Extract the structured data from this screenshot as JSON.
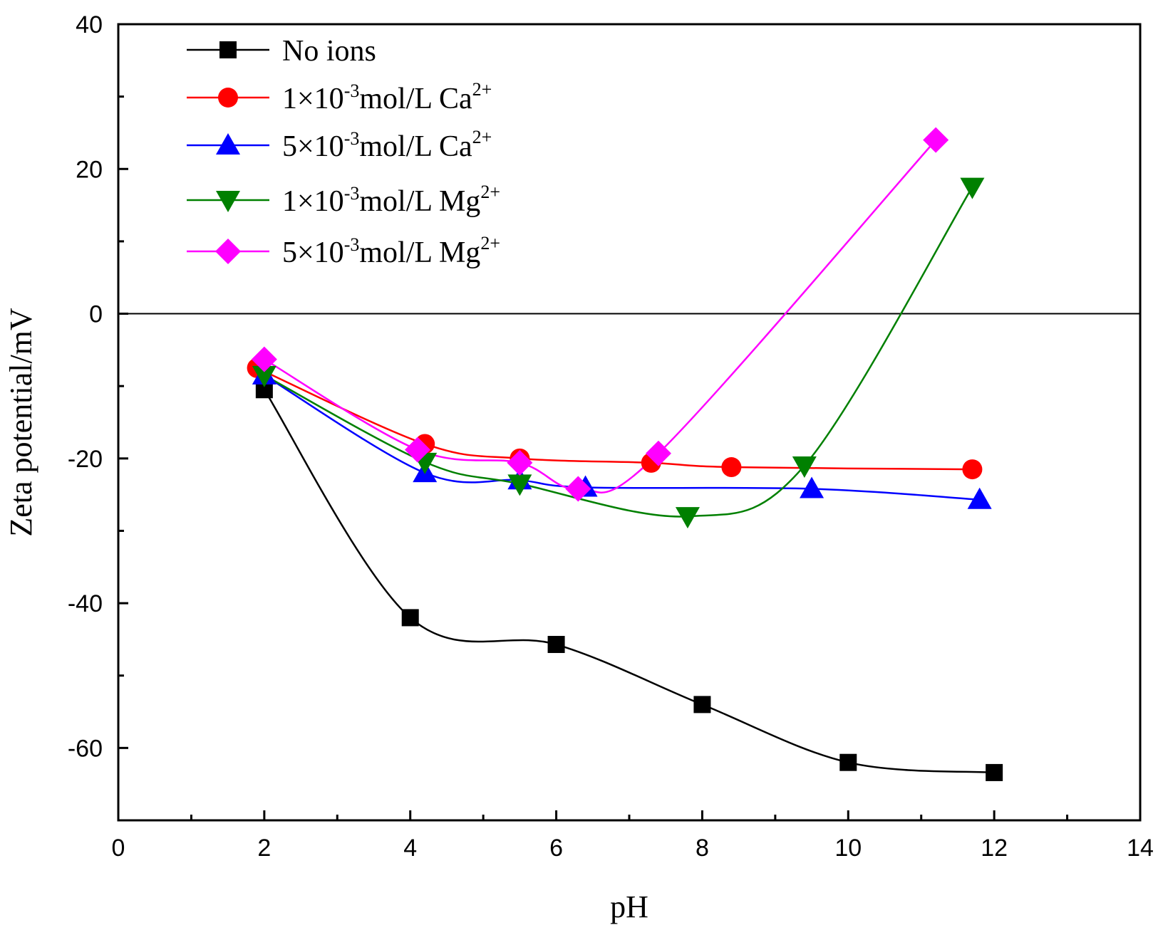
{
  "chart_data": {
    "type": "line",
    "title": "",
    "xlabel": "pH",
    "ylabel": "Zeta potential/mV",
    "xlim": [
      0,
      14
    ],
    "ylim": [
      -70,
      40
    ],
    "xticks": [
      0,
      2,
      4,
      6,
      8,
      10,
      12,
      14
    ],
    "yticks": [
      -60,
      -40,
      -20,
      0,
      20,
      40
    ],
    "xtick_labels": [
      "0",
      "2",
      "4",
      "6",
      "8",
      "10",
      "12",
      "14"
    ],
    "ytick_labels": [
      "-60",
      "-40",
      "-20",
      "0",
      "20",
      "40"
    ],
    "zero_line": true,
    "grid": false,
    "legend_position": "top-left",
    "series": [
      {
        "name": "No ions",
        "legend": {
          "prefix": "No ions",
          "exp": "",
          "mid": "",
          "sup": ""
        },
        "marker": "square",
        "color": "#000000",
        "x": [
          2,
          4,
          6,
          8,
          10,
          12
        ],
        "y": [
          -10.5,
          -42,
          -45.7,
          -54,
          -62,
          -63.4
        ]
      },
      {
        "name": "1×10-3mol/L Ca2+",
        "legend": {
          "prefix": "1×10",
          "exp": "-3",
          "mid": "mol/L Ca",
          "sup": "2+"
        },
        "marker": "circle",
        "color": "#ff0000",
        "x": [
          1.9,
          4.2,
          5.5,
          7.3,
          8.4,
          11.7
        ],
        "y": [
          -7.5,
          -18,
          -20,
          -20.6,
          -21.2,
          -21.5
        ]
      },
      {
        "name": "5×10-3mol/L Ca2+",
        "legend": {
          "prefix": "5×10",
          "exp": "-3",
          "mid": "mol/L Ca",
          "sup": "2+"
        },
        "marker": "triangle-up",
        "color": "#0000ff",
        "x": [
          2.0,
          4.2,
          5.5,
          6.4,
          9.5,
          11.8
        ],
        "y": [
          -8.5,
          -22,
          -23,
          -24,
          -24.2,
          -25.7
        ]
      },
      {
        "name": "1×10-3mol/L Mg2+",
        "legend": {
          "prefix": "1×10",
          "exp": "-3",
          "mid": "mol/L Mg",
          "sup": "2+"
        },
        "marker": "triangle-down",
        "color": "#008000",
        "x": [
          2.0,
          4.2,
          5.5,
          7.8,
          9.4,
          11.7
        ],
        "y": [
          -8.5,
          -20.5,
          -23.5,
          -28,
          -21,
          17.5
        ]
      },
      {
        "name": "5×10-3mol/L Mg2+",
        "legend": {
          "prefix": "5×10",
          "exp": "-3",
          "mid": "mol/L Mg",
          "sup": "2+"
        },
        "marker": "diamond",
        "color": "#ff00ff",
        "x": [
          2.0,
          4.1,
          5.5,
          6.3,
          7.4,
          11.2
        ],
        "y": [
          -6.3,
          -18.8,
          -20.6,
          -24.2,
          -19.3,
          24
        ]
      }
    ]
  }
}
